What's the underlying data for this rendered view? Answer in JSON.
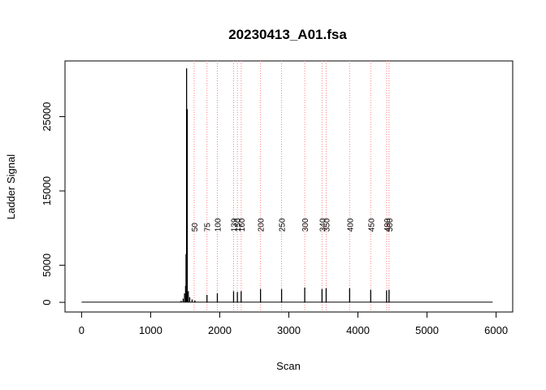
{
  "chart_data": {
    "type": "line",
    "title": "20230413_A01.fsa",
    "xlabel": "Scan",
    "ylabel": "Ladder Signal",
    "xlim": [
      -240,
      6240
    ],
    "ylim": [
      -1300,
      32500
    ],
    "x_ticks": [
      0,
      1000,
      2000,
      3000,
      4000,
      5000,
      6000
    ],
    "y_ticks": [
      0,
      5000,
      15000,
      25000
    ],
    "grid": false,
    "legend": "none",
    "line_color": "#000000",
    "marker_color": "#ff7f7f",
    "baseline": {
      "x": [
        0,
        5950
      ],
      "y": [
        30,
        30
      ]
    },
    "signal_spikes": [
      {
        "x": 1440,
        "y": 200
      },
      {
        "x": 1470,
        "y": 500
      },
      {
        "x": 1490,
        "y": 1200
      },
      {
        "x": 1505,
        "y": 2200
      },
      {
        "x": 1512,
        "y": 6500
      },
      {
        "x": 1520,
        "y": 31500
      },
      {
        "x": 1530,
        "y": 26000
      },
      {
        "x": 1545,
        "y": 1500
      },
      {
        "x": 1565,
        "y": 700
      },
      {
        "x": 1600,
        "y": 400
      },
      {
        "x": 1640,
        "y": 250
      },
      {
        "x": 1815,
        "y": 1000
      },
      {
        "x": 1965,
        "y": 1200
      },
      {
        "x": 2200,
        "y": 1500
      },
      {
        "x": 2255,
        "y": 1400
      },
      {
        "x": 2310,
        "y": 1500
      },
      {
        "x": 2590,
        "y": 1800
      },
      {
        "x": 2895,
        "y": 1800
      },
      {
        "x": 3230,
        "y": 2000
      },
      {
        "x": 3480,
        "y": 1800
      },
      {
        "x": 3540,
        "y": 1900
      },
      {
        "x": 3880,
        "y": 1900
      },
      {
        "x": 4185,
        "y": 1700
      },
      {
        "x": 4415,
        "y": 1600
      },
      {
        "x": 4450,
        "y": 1700
      }
    ],
    "ladder_peaks": [
      {
        "label": "50",
        "x": 1630
      },
      {
        "label": "75",
        "x": 1815
      },
      {
        "label": "100",
        "x": 1965
      },
      {
        "label": "139",
        "x": 2200
      },
      {
        "label": "150",
        "x": 2255
      },
      {
        "label": "160",
        "x": 2310
      },
      {
        "label": "200",
        "x": 2590
      },
      {
        "label": "250",
        "x": 2895
      },
      {
        "label": "300",
        "x": 3230
      },
      {
        "label": "340",
        "x": 3480
      },
      {
        "label": "350",
        "x": 3540
      },
      {
        "label": "400",
        "x": 3880
      },
      {
        "label": "450",
        "x": 4185
      },
      {
        "label": "490",
        "x": 4415
      },
      {
        "label": "500",
        "x": 4450
      }
    ],
    "peak_label_y": 9500
  }
}
